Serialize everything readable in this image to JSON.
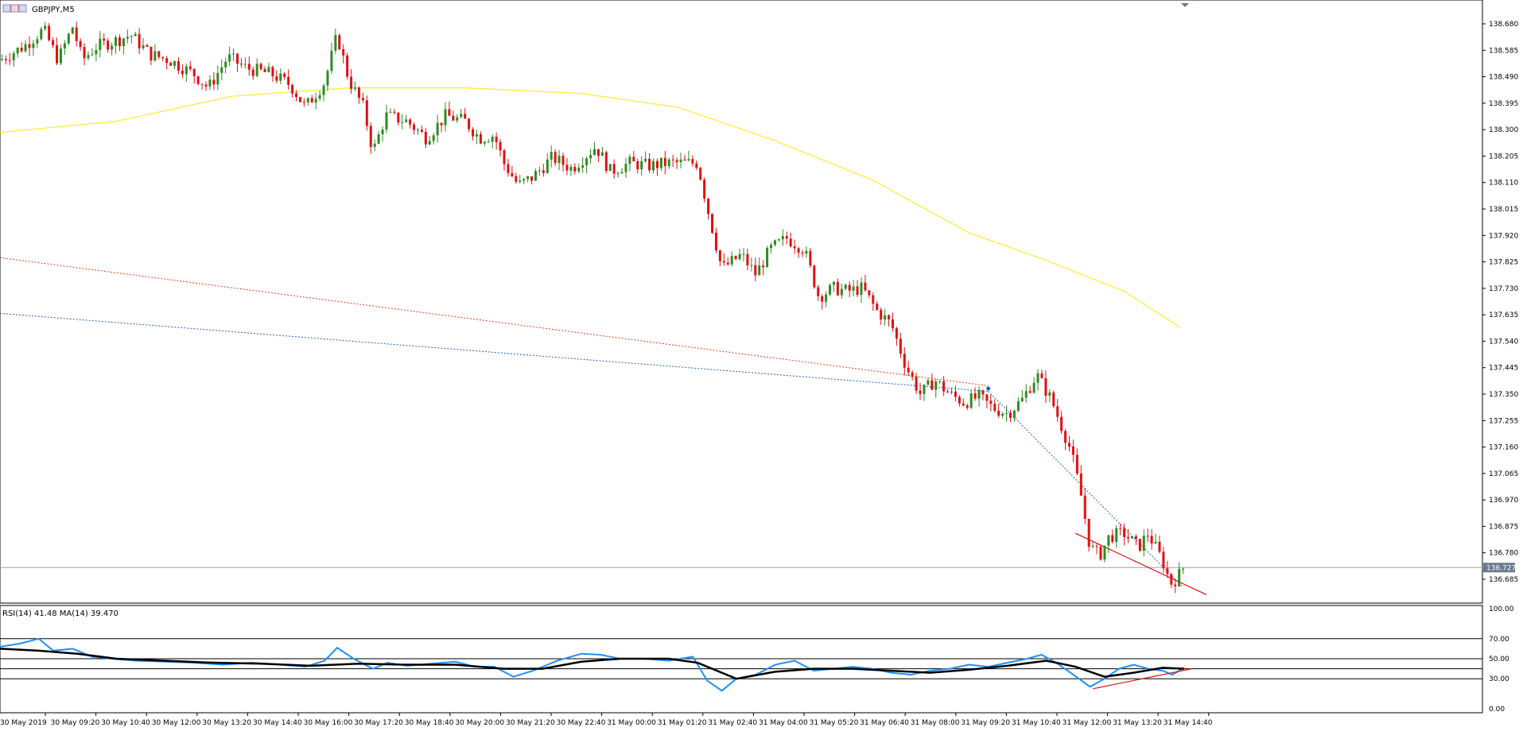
{
  "window": {
    "symbol_label": "GBPJPY,M5"
  },
  "chart_data": [
    {
      "type": "candlestick",
      "symbol": "GBPJPY",
      "timeframe": "M5",
      "price_axis": {
        "min": 136.63,
        "max": 138.72,
        "ticks": [
          "138.680",
          "138.585",
          "138.490",
          "138.395",
          "138.300",
          "138.205",
          "138.110",
          "138.015",
          "137.920",
          "137.825",
          "137.730",
          "137.635",
          "137.540",
          "137.445",
          "137.350",
          "137.255",
          "137.160",
          "137.065",
          "136.970",
          "136.875",
          "136.780",
          "136.685"
        ]
      },
      "current_price": "136.727",
      "bullish_color": "#2e8b22",
      "bearish_color": "#e01010",
      "moving_average_color": "#ffeb3b",
      "moving_average_points": [
        [
          0,
          138.29
        ],
        [
          120,
          138.33
        ],
        [
          240,
          138.42
        ],
        [
          360,
          138.45
        ],
        [
          480,
          138.45
        ],
        [
          600,
          138.43
        ],
        [
          700,
          138.38
        ],
        [
          800,
          138.26
        ],
        [
          900,
          138.12
        ],
        [
          1000,
          137.93
        ],
        [
          1080,
          137.83
        ],
        [
          1160,
          137.72
        ],
        [
          1218,
          137.59
        ]
      ],
      "trend_lines": [
        {
          "color": "#e04020",
          "style": "dotted",
          "points": [
            [
              0,
              137.84
            ],
            [
              1020,
              137.38
            ]
          ]
        },
        {
          "color": "#2060c0",
          "style": "dotted",
          "points": [
            [
              0,
              137.64
            ],
            [
              1020,
              137.36
            ]
          ]
        },
        {
          "color": "#2060c0",
          "style": "dotted",
          "points": [
            [
              1020,
              137.36
            ],
            [
              1220,
              136.66
            ]
          ]
        },
        {
          "color": "#e01010",
          "style": "solid",
          "points": [
            [
              1110,
              136.85
            ],
            [
              1245,
              136.63
            ]
          ]
        }
      ],
      "price_path": [
        [
          0,
          138.55
        ],
        [
          25,
          138.6
        ],
        [
          45,
          138.66
        ],
        [
          60,
          138.55
        ],
        [
          75,
          138.67
        ],
        [
          85,
          138.55
        ],
        [
          100,
          138.6
        ],
        [
          120,
          138.62
        ],
        [
          135,
          138.64
        ],
        [
          155,
          138.57
        ],
        [
          175,
          138.55
        ],
        [
          200,
          138.5
        ],
        [
          215,
          138.45
        ],
        [
          235,
          138.56
        ],
        [
          255,
          138.52
        ],
        [
          280,
          138.5
        ],
        [
          300,
          138.46
        ],
        [
          315,
          138.38
        ],
        [
          335,
          138.47
        ],
        [
          348,
          138.64
        ],
        [
          360,
          138.48
        ],
        [
          375,
          138.38
        ],
        [
          385,
          138.22
        ],
        [
          398,
          138.35
        ],
        [
          420,
          138.33
        ],
        [
          440,
          138.27
        ],
        [
          460,
          138.35
        ],
        [
          480,
          138.33
        ],
        [
          495,
          138.27
        ],
        [
          510,
          138.28
        ],
        [
          520,
          138.18
        ],
        [
          535,
          138.1
        ],
        [
          550,
          138.13
        ],
        [
          570,
          138.2
        ],
        [
          590,
          138.16
        ],
        [
          615,
          138.24
        ],
        [
          630,
          138.15
        ],
        [
          650,
          138.18
        ],
        [
          670,
          138.17
        ],
        [
          690,
          138.18
        ],
        [
          720,
          138.18
        ],
        [
          730,
          138.02
        ],
        [
          745,
          137.8
        ],
        [
          765,
          137.85
        ],
        [
          780,
          137.78
        ],
        [
          795,
          137.87
        ],
        [
          812,
          137.91
        ],
        [
          830,
          137.87
        ],
        [
          845,
          137.7
        ],
        [
          860,
          137.73
        ],
        [
          875,
          137.72
        ],
        [
          890,
          137.73
        ],
        [
          905,
          137.65
        ],
        [
          920,
          137.6
        ],
        [
          935,
          137.45
        ],
        [
          950,
          137.35
        ],
        [
          965,
          137.4
        ],
        [
          980,
          137.35
        ],
        [
          995,
          137.32
        ],
        [
          1010,
          137.34
        ],
        [
          1025,
          137.3
        ],
        [
          1040,
          137.28
        ],
        [
          1055,
          137.33
        ],
        [
          1070,
          137.42
        ],
        [
          1085,
          137.33
        ],
        [
          1095,
          137.24
        ],
        [
          1105,
          137.15
        ],
        [
          1115,
          137.0
        ],
        [
          1125,
          136.8
        ],
        [
          1135,
          136.77
        ],
        [
          1145,
          136.84
        ],
        [
          1160,
          136.85
        ],
        [
          1175,
          136.8
        ],
        [
          1185,
          136.85
        ],
        [
          1200,
          136.75
        ],
        [
          1208,
          136.67
        ],
        [
          1215,
          136.69
        ],
        [
          1222,
          136.73
        ]
      ],
      "x_axis_labels": [
        "30 May 2019",
        "30 May 09:20",
        "30 May 10:40",
        "30 May 12:00",
        "30 May 13:20",
        "30 May 14:40",
        "30 May 16:00",
        "30 May 17:20",
        "30 May 18:40",
        "30 May 20:00",
        "30 May 21:20",
        "30 May 22:40",
        "31 May 00:00",
        "31 May 01:20",
        "31 May 02:40",
        "31 May 04:00",
        "31 May 05:20",
        "31 May 06:40",
        "31 May 08:00",
        "31 May 09:20",
        "31 May 10:40",
        "31 May 12:00",
        "31 May 13:20",
        "31 May 14:40"
      ]
    },
    {
      "type": "line",
      "name": "RSI",
      "label": "RSI(14) 41.48 MA(14) 39.470",
      "y_axis": {
        "min": 0,
        "max": 100,
        "ticks": [
          "100.00",
          "70.00",
          "50.00",
          "30.00",
          "0.00"
        ]
      },
      "levels": [
        70,
        50,
        40,
        30
      ],
      "rsi_color": "#1e90ff",
      "ma_color": "#000000",
      "rsi_points": [
        [
          0,
          62
        ],
        [
          20,
          65
        ],
        [
          40,
          70
        ],
        [
          55,
          58
        ],
        [
          75,
          60
        ],
        [
          95,
          52
        ],
        [
          115,
          50
        ],
        [
          140,
          48
        ],
        [
          170,
          47
        ],
        [
          200,
          46
        ],
        [
          230,
          44
        ],
        [
          260,
          46
        ],
        [
          290,
          44
        ],
        [
          315,
          42
        ],
        [
          335,
          48
        ],
        [
          348,
          61
        ],
        [
          365,
          50
        ],
        [
          385,
          40
        ],
        [
          400,
          46
        ],
        [
          420,
          43
        ],
        [
          445,
          45
        ],
        [
          470,
          47
        ],
        [
          490,
          42
        ],
        [
          510,
          42
        ],
        [
          530,
          32
        ],
        [
          550,
          38
        ],
        [
          575,
          48
        ],
        [
          600,
          55
        ],
        [
          620,
          54
        ],
        [
          640,
          50
        ],
        [
          665,
          50
        ],
        [
          690,
          48
        ],
        [
          715,
          52
        ],
        [
          730,
          28
        ],
        [
          745,
          18
        ],
        [
          760,
          30
        ],
        [
          780,
          34
        ],
        [
          800,
          44
        ],
        [
          820,
          48
        ],
        [
          840,
          38
        ],
        [
          860,
          40
        ],
        [
          880,
          42
        ],
        [
          900,
          40
        ],
        [
          920,
          36
        ],
        [
          940,
          34
        ],
        [
          960,
          38
        ],
        [
          980,
          40
        ],
        [
          1000,
          44
        ],
        [
          1020,
          42
        ],
        [
          1040,
          46
        ],
        [
          1060,
          50
        ],
        [
          1075,
          54
        ],
        [
          1090,
          46
        ],
        [
          1105,
          36
        ],
        [
          1125,
          22
        ],
        [
          1140,
          30
        ],
        [
          1155,
          40
        ],
        [
          1170,
          44
        ],
        [
          1185,
          40
        ],
        [
          1200,
          38
        ],
        [
          1210,
          34
        ],
        [
          1222,
          41
        ]
      ],
      "ma_points": [
        [
          0,
          60
        ],
        [
          40,
          58
        ],
        [
          80,
          55
        ],
        [
          120,
          50
        ],
        [
          170,
          48
        ],
        [
          220,
          46
        ],
        [
          270,
          45
        ],
        [
          320,
          43
        ],
        [
          370,
          45
        ],
        [
          420,
          44
        ],
        [
          470,
          44
        ],
        [
          520,
          40
        ],
        [
          560,
          40
        ],
        [
          600,
          47
        ],
        [
          640,
          50
        ],
        [
          690,
          50
        ],
        [
          720,
          46
        ],
        [
          760,
          30
        ],
        [
          800,
          37
        ],
        [
          840,
          40
        ],
        [
          880,
          40
        ],
        [
          920,
          38
        ],
        [
          960,
          36
        ],
        [
          1000,
          39
        ],
        [
          1040,
          43
        ],
        [
          1080,
          48
        ],
        [
          1110,
          42
        ],
        [
          1140,
          32
        ],
        [
          1170,
          36
        ],
        [
          1200,
          41
        ],
        [
          1222,
          40
        ]
      ],
      "divergence_line": {
        "color": "#e01010",
        "points": [
          [
            1128,
            20
          ],
          [
            1230,
            40
          ]
        ]
      }
    }
  ]
}
